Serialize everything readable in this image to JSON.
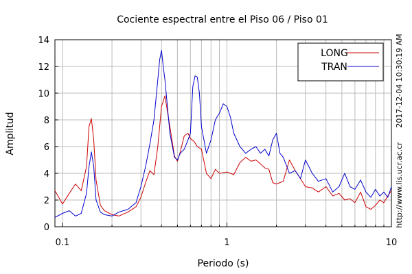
{
  "chart_data": {
    "type": "line",
    "title": "Cociente espectral entre el Piso 06 / Piso 01",
    "xlabel": "Periodo (s)",
    "ylabel": "Amplitud",
    "xscale": "log",
    "xlim": [
      0.09,
      10
    ],
    "ylim": [
      0,
      14
    ],
    "x_tick_labels": [
      {
        "value": 0.1,
        "label": "0.1"
      },
      {
        "value": 1,
        "label": "1"
      },
      {
        "value": 10,
        "label": "10"
      }
    ],
    "y_ticks": [
      0,
      2,
      4,
      6,
      8,
      10,
      12,
      14
    ],
    "grid": true,
    "legend_position": "top-right",
    "timestamp": "2017-12-04 10:30:19 AM",
    "url": "http://www.lis.ucr.ac.cr",
    "series": [
      {
        "name": "LONG",
        "color": "#cc0000",
        "x": [
          0.09,
          0.095,
          0.1,
          0.11,
          0.12,
          0.13,
          0.14,
          0.145,
          0.15,
          0.155,
          0.16,
          0.17,
          0.18,
          0.2,
          0.22,
          0.25,
          0.28,
          0.3,
          0.32,
          0.34,
          0.36,
          0.38,
          0.4,
          0.42,
          0.45,
          0.48,
          0.5,
          0.52,
          0.55,
          0.58,
          0.6,
          0.63,
          0.66,
          0.7,
          0.75,
          0.8,
          0.85,
          0.9,
          1.0,
          1.1,
          1.2,
          1.3,
          1.4,
          1.5,
          1.6,
          1.7,
          1.8,
          1.9,
          2.0,
          2.2,
          2.4,
          2.6,
          2.8,
          3.0,
          3.3,
          3.6,
          4.0,
          4.4,
          4.8,
          5.2,
          5.6,
          6.0,
          6.5,
          7.0,
          7.5,
          8.0,
          8.5,
          9.0,
          9.5,
          10.0
        ],
        "values": [
          2.7,
          2.2,
          1.7,
          2.5,
          3.2,
          2.7,
          4.5,
          7.5,
          8.1,
          6.5,
          3.5,
          1.6,
          1.2,
          0.9,
          0.8,
          1.1,
          1.5,
          2.2,
          3.3,
          4.2,
          3.9,
          6.0,
          9.0,
          9.8,
          7.5,
          5.3,
          4.9,
          5.6,
          6.8,
          7.0,
          6.6,
          6.4,
          6.0,
          5.8,
          4.0,
          3.6,
          4.3,
          4.0,
          4.1,
          3.9,
          4.8,
          5.2,
          4.9,
          5.0,
          4.7,
          4.4,
          4.3,
          3.3,
          3.2,
          3.4,
          5.0,
          4.2,
          3.6,
          3.0,
          2.9,
          2.6,
          3.0,
          2.3,
          2.5,
          2.0,
          2.1,
          1.8,
          2.6,
          1.5,
          1.3,
          1.6,
          2.0,
          1.8,
          2.3,
          2.7
        ]
      },
      {
        "name": "TRAN",
        "color": "#0000cc",
        "x": [
          0.09,
          0.1,
          0.11,
          0.12,
          0.13,
          0.14,
          0.145,
          0.15,
          0.155,
          0.16,
          0.17,
          0.18,
          0.2,
          0.22,
          0.25,
          0.28,
          0.3,
          0.32,
          0.34,
          0.36,
          0.38,
          0.39,
          0.4,
          0.41,
          0.42,
          0.45,
          0.48,
          0.5,
          0.52,
          0.55,
          0.58,
          0.6,
          0.62,
          0.64,
          0.66,
          0.68,
          0.7,
          0.75,
          0.8,
          0.85,
          0.9,
          0.95,
          1.0,
          1.05,
          1.1,
          1.2,
          1.3,
          1.4,
          1.5,
          1.6,
          1.7,
          1.8,
          1.9,
          2.0,
          2.1,
          2.2,
          2.4,
          2.6,
          2.8,
          3.0,
          3.3,
          3.6,
          4.0,
          4.4,
          4.8,
          5.2,
          5.6,
          6.0,
          6.5,
          7.0,
          7.5,
          8.0,
          8.5,
          9.0,
          9.5,
          10.0
        ],
        "values": [
          0.7,
          1.0,
          1.2,
          0.8,
          1.0,
          2.5,
          4.5,
          5.6,
          4.5,
          2.0,
          1.1,
          0.9,
          0.8,
          1.1,
          1.3,
          1.8,
          3.0,
          4.5,
          6.2,
          8.0,
          11.0,
          12.5,
          13.2,
          12.0,
          11.0,
          7.0,
          5.2,
          5.0,
          5.5,
          5.8,
          6.5,
          7.0,
          10.5,
          11.3,
          11.2,
          10.0,
          7.5,
          5.5,
          6.5,
          8.0,
          8.5,
          9.2,
          9.0,
          8.2,
          7.0,
          6.0,
          5.5,
          5.8,
          6.0,
          5.5,
          5.8,
          5.3,
          6.5,
          7.0,
          5.5,
          5.2,
          4.0,
          4.2,
          3.6,
          5.0,
          4.0,
          3.4,
          3.6,
          2.6,
          3.0,
          4.0,
          3.0,
          2.8,
          3.5,
          2.6,
          2.2,
          2.8,
          2.3,
          2.6,
          2.2,
          3.0
        ]
      }
    ]
  }
}
